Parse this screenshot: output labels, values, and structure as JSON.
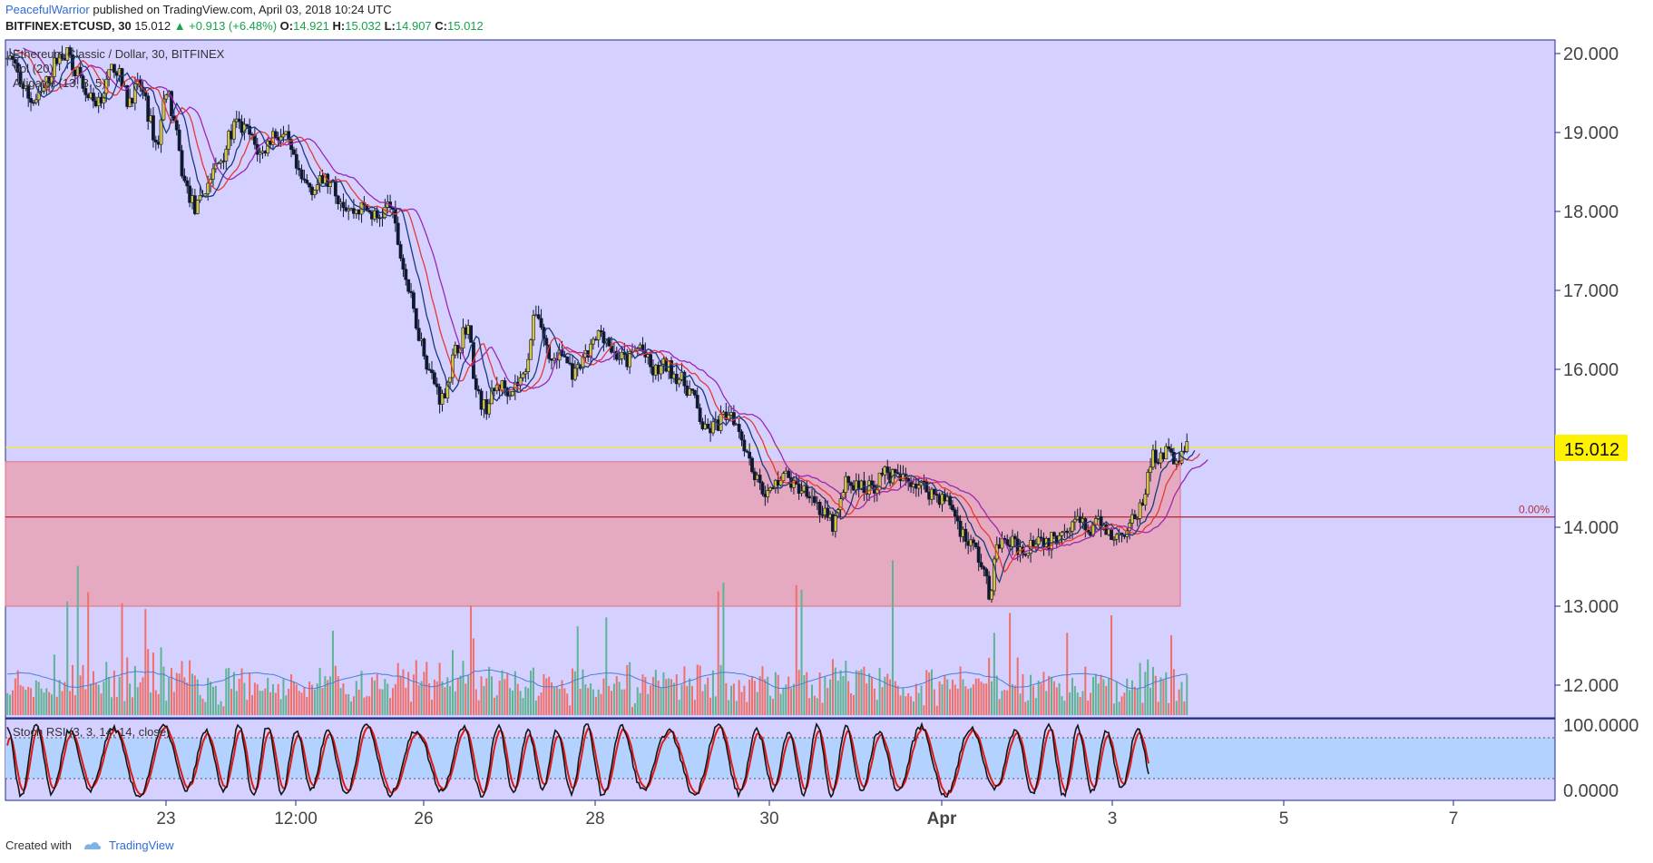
{
  "header": {
    "author": "PeacefulWarrior",
    "published": "published on TradingView.com, April 03, 2018 10:24 UTC",
    "symbol": "BITFINEX:ETCUSD, 30",
    "last": "15.012",
    "change": "▲ +0.913 (+6.48%)",
    "o_label": "O:",
    "o_val": "14.921",
    "h_label": "H:",
    "h_val": "15.032",
    "l_label": "L:",
    "l_val": "14.907",
    "c_label": "C:",
    "c_val": "15.012"
  },
  "legend": {
    "line1": "Ethereum Classic / Dollar, 30, BITFINEX",
    "line2": "Vol (20)",
    "line3": "Alligator (13, 8, 5)",
    "stoch": "Stoch RSI (3, 3, 14, 14, close)"
  },
  "footer": {
    "created": "Created with",
    "brand": "TradingView"
  },
  "colors": {
    "background": "#d4d0ff",
    "zone_fill": "#e7a3b6",
    "zone_border": "#e0707e",
    "candle_up": "#d6c642",
    "candle_down": "#0f1930",
    "jaw": "#9c27b0",
    "teeth": "#e53935",
    "lips": "#1a3b7a",
    "vol_up": "#5fb393",
    "vol_down": "#ef6f6a",
    "price_tag": "#fff200",
    "stoch_band": "#b3d2ff"
  },
  "chart_data": {
    "type": "candlestick",
    "y_axis": {
      "ticks": [
        "20.000",
        "19.000",
        "18.000",
        "17.000",
        "16.000",
        "15.000",
        "14.000",
        "13.000",
        "12.000"
      ],
      "range": [
        11.6,
        20.2
      ]
    },
    "x_axis": {
      "ticks": [
        "23",
        "12:00",
        "26",
        "28",
        "30",
        "Apr",
        "3",
        "5",
        "7"
      ]
    },
    "current_price": "15.012",
    "support_zone": {
      "low": 13.0,
      "high": 14.83
    },
    "fib_level": {
      "label": "0.00%",
      "price": 14.13
    },
    "price_path": [
      [
        22.4,
        19.9
      ],
      [
        22.55,
        19.4
      ],
      [
        22.7,
        19.6
      ],
      [
        22.8,
        19.2
      ],
      [
        22.9,
        18.8
      ],
      [
        23.0,
        19.6
      ],
      [
        23.1,
        19.1
      ],
      [
        23.2,
        18.4
      ],
      [
        23.35,
        18.0
      ],
      [
        23.5,
        18.4
      ],
      [
        23.65,
        18.7
      ],
      [
        23.8,
        19.1
      ],
      [
        23.95,
        19.0
      ],
      [
        24.1,
        18.7
      ],
      [
        24.25,
        19.0
      ],
      [
        24.4,
        18.9
      ],
      [
        24.55,
        18.4
      ],
      [
        24.7,
        18.3
      ],
      [
        24.85,
        18.4
      ],
      [
        25.0,
        18.2
      ],
      [
        25.15,
        18.0
      ],
      [
        25.3,
        18.05
      ],
      [
        25.45,
        17.9
      ],
      [
        25.6,
        18.1
      ],
      [
        25.75,
        17.3
      ],
      [
        25.9,
        16.6
      ],
      [
        26.05,
        16.0
      ],
      [
        26.2,
        15.6
      ],
      [
        26.35,
        16.2
      ],
      [
        26.5,
        16.6
      ],
      [
        26.6,
        15.7
      ],
      [
        26.7,
        15.5
      ],
      [
        26.85,
        15.8
      ],
      [
        27.0,
        15.75
      ],
      [
        27.15,
        15.9
      ],
      [
        27.3,
        16.8
      ],
      [
        27.45,
        16.1
      ],
      [
        27.6,
        16.2
      ],
      [
        27.75,
        15.9
      ],
      [
        27.9,
        16.2
      ],
      [
        28.05,
        16.5
      ],
      [
        28.2,
        16.2
      ],
      [
        28.35,
        16.1
      ],
      [
        28.5,
        16.3
      ],
      [
        28.65,
        15.95
      ],
      [
        28.8,
        16.05
      ],
      [
        28.95,
        15.9
      ],
      [
        29.1,
        15.7
      ],
      [
        29.25,
        15.2
      ],
      [
        29.4,
        15.3
      ],
      [
        29.55,
        15.5
      ],
      [
        29.7,
        15.1
      ],
      [
        29.85,
        14.6
      ],
      [
        30.0,
        14.4
      ],
      [
        30.15,
        14.7
      ],
      [
        30.3,
        14.5
      ],
      [
        30.45,
        14.5
      ],
      [
        30.6,
        14.2
      ],
      [
        30.75,
        14.0
      ],
      [
        30.9,
        14.6
      ],
      [
        31.05,
        14.5
      ],
      [
        31.2,
        14.5
      ],
      [
        31.35,
        14.7
      ],
      [
        31.5,
        14.6
      ],
      [
        31.65,
        14.6
      ],
      [
        31.8,
        14.5
      ],
      [
        31.95,
        14.4
      ],
      [
        32.1,
        14.3
      ],
      [
        32.25,
        13.9
      ],
      [
        32.4,
        13.7
      ],
      [
        32.5,
        13.4
      ],
      [
        32.55,
        13.1
      ],
      [
        32.65,
        13.8
      ],
      [
        32.8,
        13.8
      ],
      [
        32.95,
        13.7
      ],
      [
        33.1,
        13.9
      ],
      [
        33.25,
        13.8
      ],
      [
        33.4,
        14.0
      ],
      [
        33.55,
        14.1
      ],
      [
        33.7,
        13.95
      ],
      [
        33.85,
        14.05
      ],
      [
        34.0,
        13.85
      ],
      [
        34.15,
        14.0
      ],
      [
        34.3,
        14.2
      ],
      [
        34.45,
        14.9
      ],
      [
        34.6,
        14.95
      ],
      [
        34.75,
        14.85
      ],
      [
        34.85,
        15.01
      ]
    ],
    "volume_series": "Vol (20)",
    "stoch_rsi": {
      "levels": [
        "100.0000",
        "0.0000"
      ],
      "bands": [
        80,
        20
      ]
    }
  }
}
